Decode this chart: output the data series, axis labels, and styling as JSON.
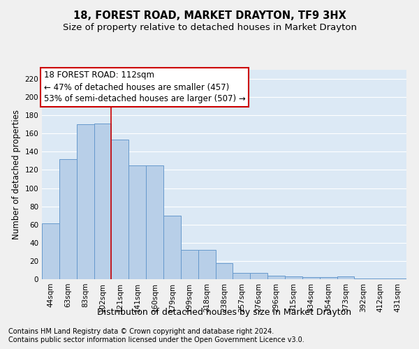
{
  "title": "18, FOREST ROAD, MARKET DRAYTON, TF9 3HX",
  "subtitle": "Size of property relative to detached houses in Market Drayton",
  "xlabel": "Distribution of detached houses by size in Market Drayton",
  "ylabel": "Number of detached properties",
  "categories": [
    "44sqm",
    "63sqm",
    "83sqm",
    "102sqm",
    "121sqm",
    "141sqm",
    "160sqm",
    "179sqm",
    "199sqm",
    "218sqm",
    "238sqm",
    "257sqm",
    "276sqm",
    "296sqm",
    "315sqm",
    "334sqm",
    "354sqm",
    "373sqm",
    "392sqm",
    "412sqm",
    "431sqm"
  ],
  "values": [
    61,
    132,
    170,
    171,
    153,
    125,
    125,
    70,
    32,
    32,
    18,
    7,
    7,
    4,
    3,
    2,
    2,
    3,
    1,
    1,
    1
  ],
  "bar_color": "#b8cfe8",
  "bar_edge_color": "#6699cc",
  "background_color": "#dce9f5",
  "grid_color": "#ffffff",
  "vline_x": 3.5,
  "vline_color": "#cc0000",
  "annotation_text": "18 FOREST ROAD: 112sqm\n← 47% of detached houses are smaller (457)\n53% of semi-detached houses are larger (507) →",
  "annotation_box_color": "#ffffff",
  "annotation_box_edge": "#cc0000",
  "ylim": [
    0,
    230
  ],
  "yticks": [
    0,
    20,
    40,
    60,
    80,
    100,
    120,
    140,
    160,
    180,
    200,
    220
  ],
  "footer1": "Contains HM Land Registry data © Crown copyright and database right 2024.",
  "footer2": "Contains public sector information licensed under the Open Government Licence v3.0.",
  "title_fontsize": 10.5,
  "subtitle_fontsize": 9.5,
  "xlabel_fontsize": 9,
  "ylabel_fontsize": 8.5,
  "tick_fontsize": 7.5,
  "annotation_fontsize": 8.5,
  "footer_fontsize": 7
}
